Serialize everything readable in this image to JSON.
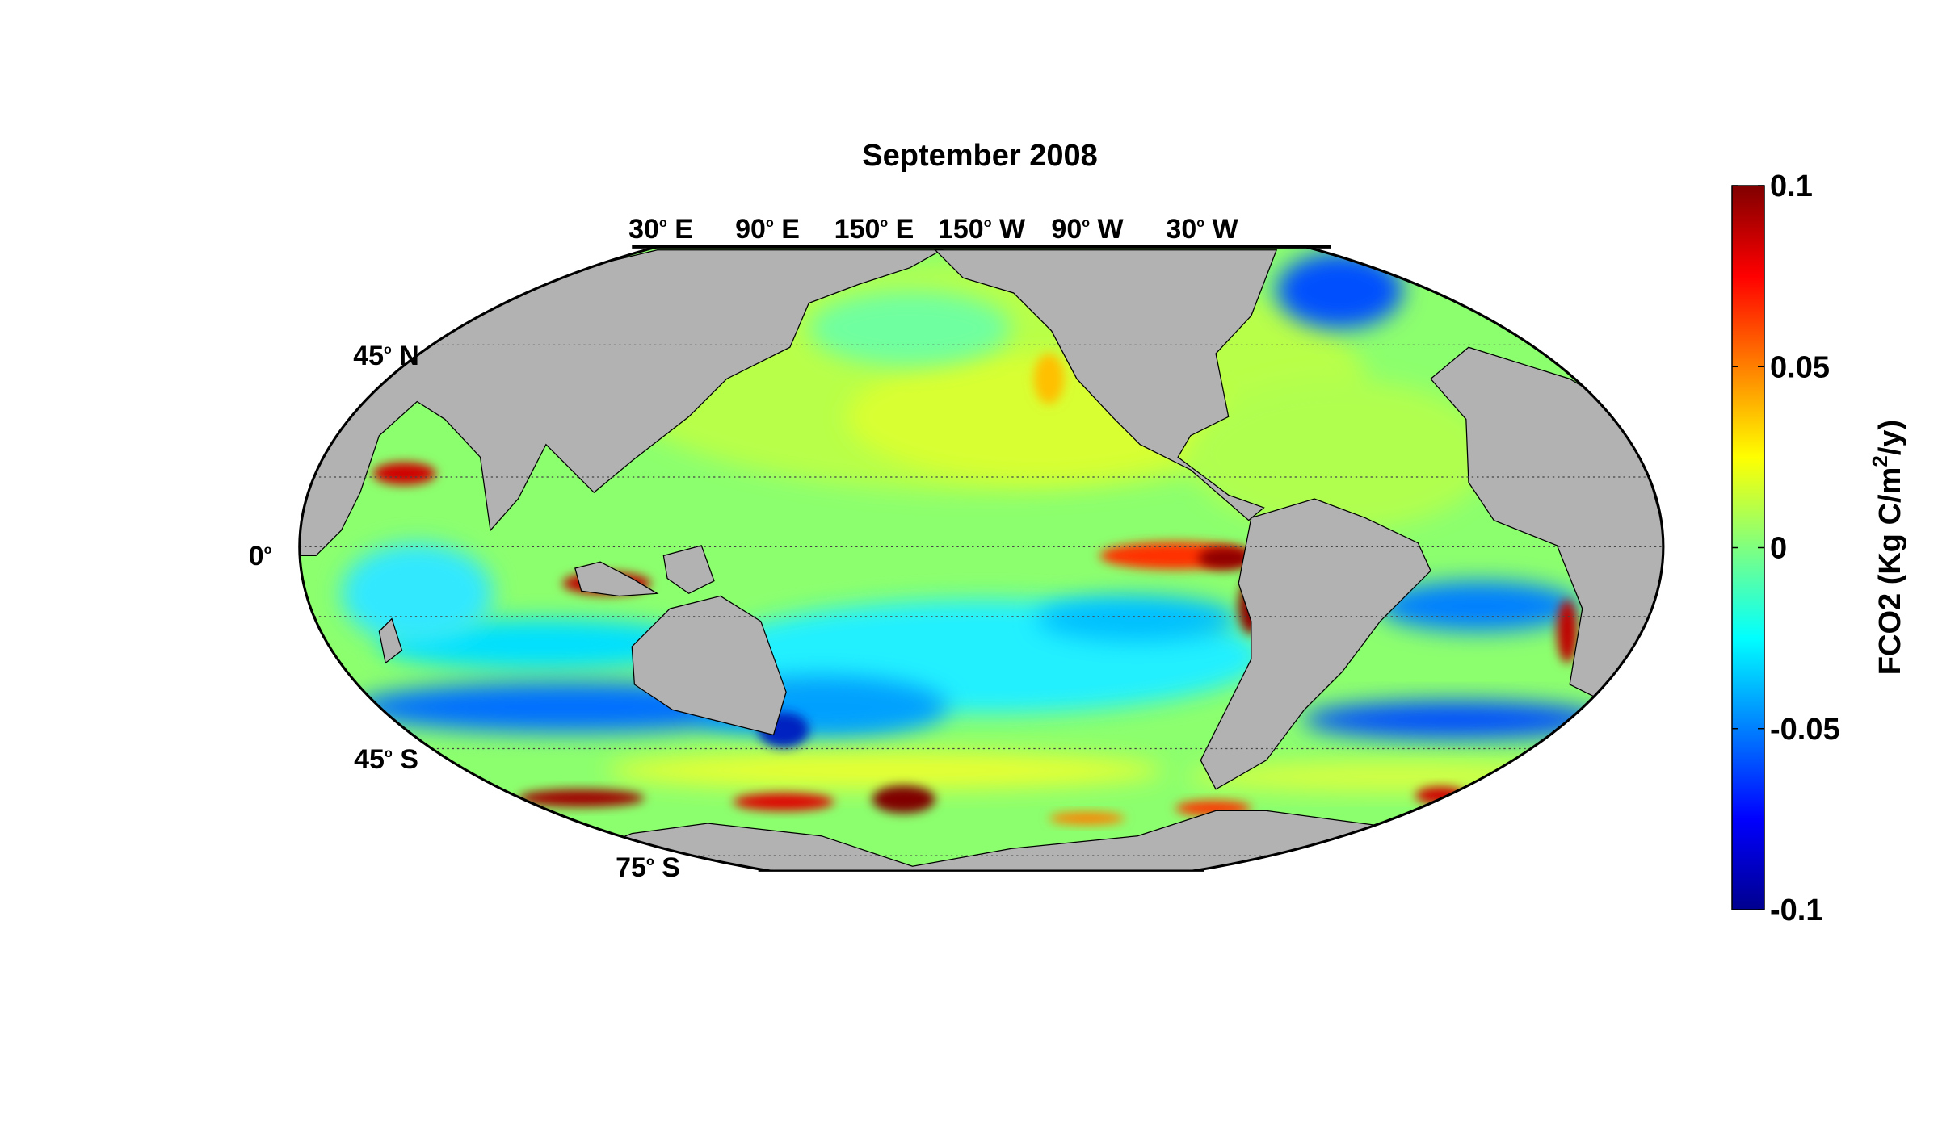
{
  "chart_data": {
    "type": "heatmap",
    "projection": "mollweide",
    "title": "September 2008",
    "longitude_labels": [
      {
        "deg": "30",
        "hemi": "E"
      },
      {
        "deg": "90",
        "hemi": "E"
      },
      {
        "deg": "150",
        "hemi": "E"
      },
      {
        "deg": "150",
        "hemi": "W"
      },
      {
        "deg": "90",
        "hemi": "W"
      },
      {
        "deg": "30",
        "hemi": "W"
      }
    ],
    "latitude_labels": [
      {
        "deg": "45",
        "hemi": "N",
        "lat": 45
      },
      {
        "deg": "0",
        "hemi": "",
        "lat": 0
      },
      {
        "deg": "45",
        "hemi": "S",
        "lat": -45
      },
      {
        "deg": "75",
        "hemi": "S",
        "lat": -75
      }
    ],
    "grid": true,
    "colorbar": {
      "colormap": "jet",
      "clim": [
        -0.1,
        0.1
      ],
      "ticks": [
        0.1,
        0.05,
        0,
        -0.05,
        -0.1
      ],
      "tick_labels": [
        "0.1",
        "0.05",
        "0",
        "-0.05",
        "-0.1"
      ],
      "label_main": "FCO2 (Kg C/m",
      "label_sup": "2",
      "label_end": "/y)",
      "placement": "right"
    },
    "colors": {
      "land": "#b2b2b2",
      "no_data": "#ffffff"
    }
  }
}
